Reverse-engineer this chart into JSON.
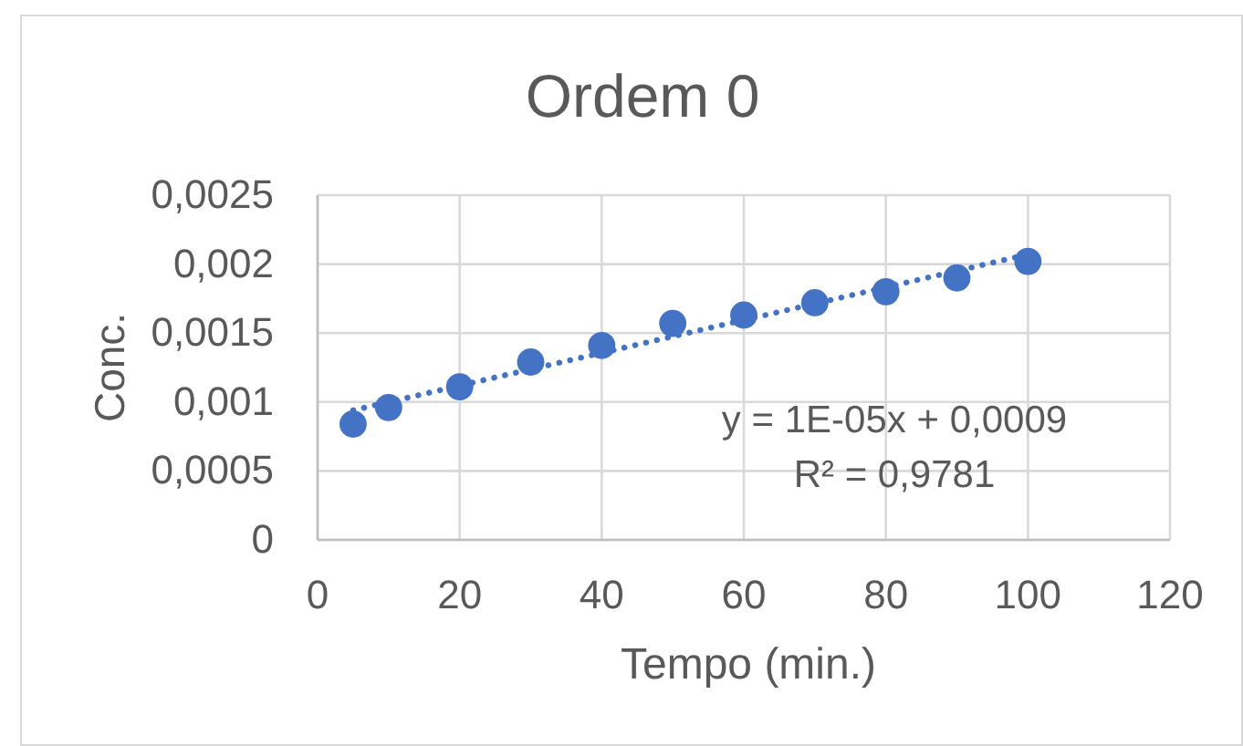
{
  "chart_data": {
    "type": "scatter",
    "title": "Ordem 0",
    "xlabel": "Tempo (min.)",
    "ylabel": "Conc.",
    "x": [
      5,
      10,
      20,
      30,
      40,
      50,
      60,
      70,
      80,
      90,
      100
    ],
    "series": [
      {
        "color": "#4472c4",
        "values": [
          0.00084,
          0.00096,
          0.00111,
          0.00129,
          0.00141,
          0.00157,
          0.00163,
          0.00172,
          0.0018,
          0.0019,
          0.00202
        ]
      },
      {
        "type": "line",
        "x": [
          5,
          100
        ],
        "values": [
          0.00094,
          0.00207
        ],
        "color": "#4472c4",
        "line_style": "dotted",
        "marker": "none"
      }
    ],
    "annotations": [
      "y = 1E-05x + 0,0009",
      "R² = 0,9781"
    ],
    "xlim": [
      0,
      120
    ],
    "xticks": [
      0,
      20,
      40,
      60,
      80,
      100,
      120
    ],
    "ylim": [
      0,
      0.0025
    ],
    "yticks": [
      0,
      {
        "value": 0.0005,
        "label": "0,0005"
      },
      {
        "value": 0.001,
        "label": "0,001"
      },
      {
        "value": 0.0015,
        "label": "0,0015"
      },
      {
        "value": 0.002,
        "label": "0,002"
      },
      {
        "value": 0.0025,
        "label": "0,0025"
      }
    ],
    "grid": true,
    "marker": "circle"
  }
}
